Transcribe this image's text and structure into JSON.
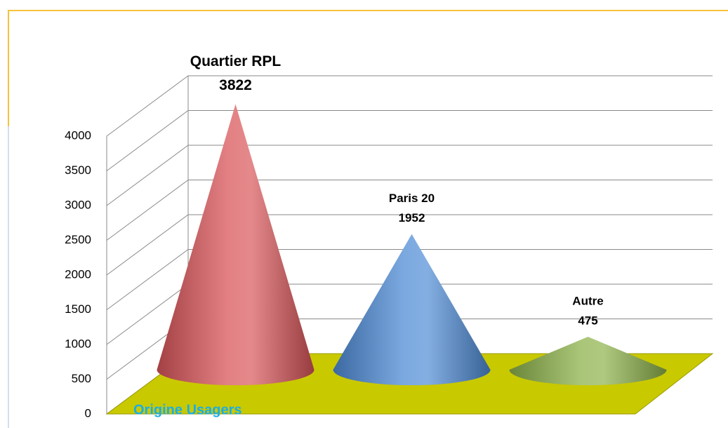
{
  "chart_data": {
    "type": "cone3d",
    "x_label": "Origine Usagers",
    "categories": [
      "Quartier RPL",
      "Paris 20",
      "Autre"
    ],
    "values": [
      3822,
      1952,
      475
    ],
    "colors": [
      "#d9565a",
      "#4f8cd6",
      "#8db24a"
    ],
    "floor_color": "#c9c900",
    "ylim": [
      0,
      4000
    ],
    "yticks": [
      0,
      500,
      1000,
      1500,
      2000,
      2500,
      3000,
      3500,
      4000
    ],
    "grid": true
  }
}
